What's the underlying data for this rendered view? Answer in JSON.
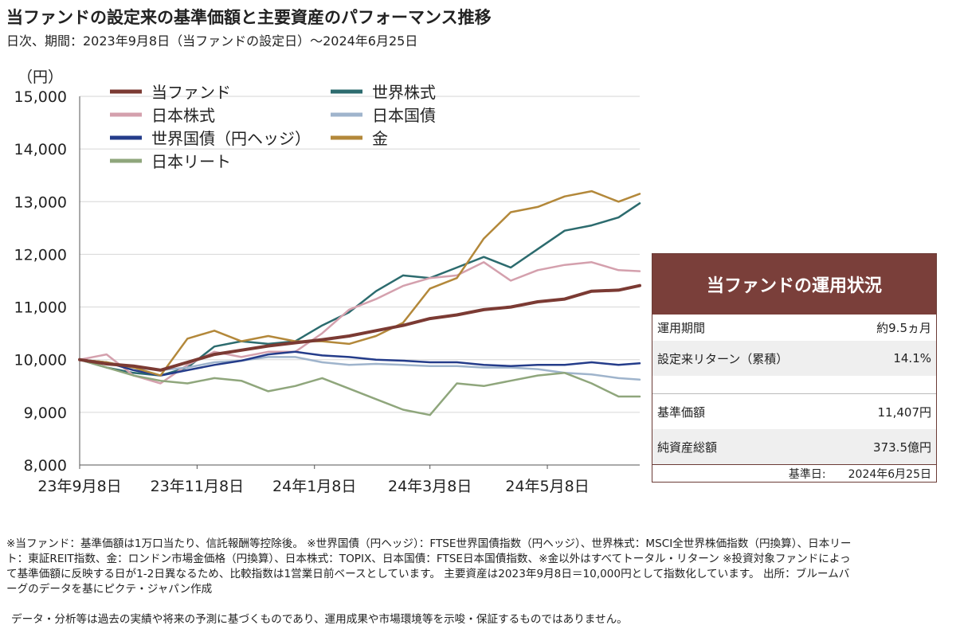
{
  "title": "当ファンドの設定来の基準価額と主要資産のパフォーマンス推移",
  "subtitle": "日次、期間：2023年9月8日（当ファンドの設定日）～2024年6月25日",
  "chart_data": {
    "type": "line",
    "ylabel": "（円）",
    "ylim": [
      8000,
      15000
    ],
    "yticks": [
      "8,000",
      "9,000",
      "10,000",
      "11,000",
      "12,000",
      "13,000",
      "14,000",
      "15,000"
    ],
    "xlabels": [
      "23年9月8日",
      "23年11月8日",
      "24年1月8日",
      "24年3月8日",
      "24年5月8日"
    ],
    "x": [
      "2023-09-08",
      "2023-09-22",
      "2023-10-06",
      "2023-10-20",
      "2023-11-03",
      "2023-11-17",
      "2023-12-01",
      "2023-12-15",
      "2023-12-29",
      "2024-01-12",
      "2024-01-26",
      "2024-02-09",
      "2024-02-23",
      "2024-03-08",
      "2024-03-22",
      "2024-04-05",
      "2024-04-19",
      "2024-05-03",
      "2024-05-17",
      "2024-05-31",
      "2024-06-14",
      "2024-06-25"
    ],
    "grid": true,
    "legend_position": "top-left",
    "series": [
      {
        "name": "当ファンド",
        "color": "#7b3a33",
        "width": 4,
        "values": [
          10000,
          9920,
          9880,
          9800,
          9950,
          10100,
          10180,
          10260,
          10320,
          10380,
          10450,
          10550,
          10650,
          10780,
          10850,
          10950,
          11000,
          11100,
          11150,
          11300,
          11320,
          11407
        ]
      },
      {
        "name": "世界株式",
        "color": "#2c6b6e",
        "width": 2.5,
        "values": [
          10000,
          9850,
          9750,
          9700,
          9850,
          10250,
          10350,
          10300,
          10350,
          10650,
          10900,
          11300,
          11600,
          11550,
          11750,
          11950,
          11750,
          12100,
          12450,
          12550,
          12700,
          12970
        ]
      },
      {
        "name": "日本株式",
        "color": "#d4a0ad",
        "width": 2.5,
        "values": [
          10000,
          10100,
          9700,
          9550,
          9900,
          10150,
          10050,
          10150,
          10150,
          10500,
          10950,
          11150,
          11400,
          11550,
          11600,
          11850,
          11500,
          11700,
          11800,
          11850,
          11700,
          11680
        ]
      },
      {
        "name": "日本国債",
        "color": "#9fb4cc",
        "width": 2.5,
        "values": [
          10000,
          9950,
          9850,
          9800,
          9850,
          9950,
          9980,
          10050,
          10050,
          9950,
          9900,
          9920,
          9900,
          9880,
          9880,
          9850,
          9850,
          9820,
          9750,
          9720,
          9650,
          9620
        ]
      },
      {
        "name": "世界国債（円ヘッジ）",
        "color": "#243c8a",
        "width": 2.5,
        "values": [
          10000,
          9950,
          9800,
          9700,
          9800,
          9900,
          9980,
          10100,
          10150,
          10080,
          10050,
          10000,
          9980,
          9950,
          9950,
          9900,
          9880,
          9900,
          9900,
          9950,
          9900,
          9930
        ]
      },
      {
        "name": "金",
        "color": "#b3883a",
        "width": 2.5,
        "values": [
          10000,
          9950,
          9850,
          9700,
          10400,
          10550,
          10350,
          10450,
          10350,
          10350,
          10300,
          10450,
          10700,
          11350,
          11550,
          12300,
          12800,
          12900,
          13100,
          13200,
          13000,
          13150
        ]
      },
      {
        "name": "日本リート",
        "color": "#8fa67c",
        "width": 2.5,
        "values": [
          10000,
          9850,
          9700,
          9600,
          9550,
          9650,
          9600,
          9400,
          9500,
          9650,
          9450,
          9250,
          9050,
          8950,
          9550,
          9500,
          9600,
          9700,
          9750,
          9550,
          9300,
          9300
        ]
      }
    ]
  },
  "panel": {
    "title": "当ファンドの運用状況",
    "rows": [
      {
        "label": "運用期間",
        "value": "約9.5ヵ月"
      },
      {
        "label": "設定来リターン（累積）",
        "value": "14.1%"
      },
      {
        "label": "",
        "value": ""
      },
      {
        "label": "基準価額",
        "value": "11,407円"
      },
      {
        "label": "純資産総額",
        "value": "373.5億円"
      }
    ],
    "footer_label": "基準日:",
    "footer_value": "2024年6月25日"
  },
  "notes": "※当ファンド：基準価額は1万口当たり、信託報酬等控除後。 ※世界国債（円ヘッジ）：FTSE世界国債指数（円ヘッジ）、世界株式：MSCI全世界株価指数（円換算）、日本リート：東証REIT指数、金：ロンドン市場金価格（円換算）、日本株式：TOPIX、日本国債：FTSE日本国債指数、※金以外はすべてトータル・リターン ※投資対象ファンドによって基準価額に反映する日が1-2日異なるため、比較指数は1営業日前ベースとしています。 主要資産は2023年9月8日＝10,000円として指数化しています。 出所：ブルームバーグのデータを基にピクテ・ジャパン作成",
  "disclaimer": "データ・分析等は過去の実績や将来の予測に基づくものであり、運用成果や市場環境等を示唆・保証するものではありません。"
}
